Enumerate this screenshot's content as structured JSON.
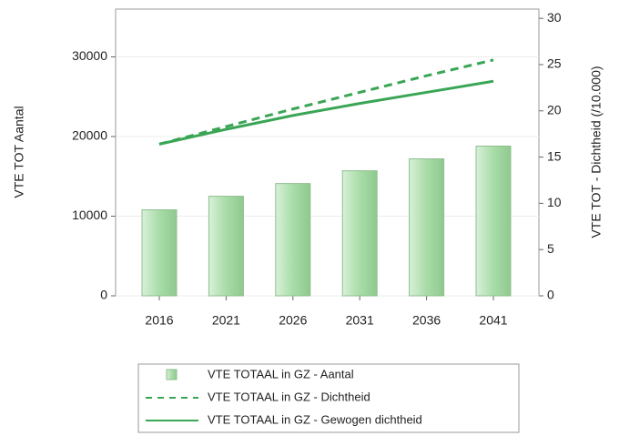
{
  "chart_data": {
    "type": "bar_line",
    "categories": [
      "2016",
      "2021",
      "2026",
      "2031",
      "2036",
      "2041"
    ],
    "ylabel": "VTE TOT Aantal",
    "y2label": "VTE TOT - Dichtheid (/10.000)",
    "ylim": [
      0,
      36000
    ],
    "yticks": [
      0,
      10000,
      20000,
      30000
    ],
    "y2lim": [
      0,
      31
    ],
    "y2ticks": [
      0,
      5,
      10,
      15,
      20,
      25,
      30
    ],
    "grid": true,
    "series": [
      {
        "name": "VTE TOTAAL in GZ - Aantal",
        "type": "bar",
        "color": "#a8dca8",
        "values": [
          10800,
          12500,
          14100,
          15700,
          17200,
          18800
        ]
      },
      {
        "name": "VTE TOTAAL in GZ - Dichtheid",
        "type": "line",
        "style": "dashed",
        "axis": "y2",
        "color": "#3aa655",
        "values": [
          16.4,
          18.3,
          20.2,
          22.0,
          23.8,
          25.5
        ]
      },
      {
        "name": "VTE TOTAAL in GZ - Gewogen dichtheid",
        "type": "line",
        "style": "solid",
        "axis": "y2",
        "color": "#3aa655",
        "values": [
          16.4,
          18.0,
          19.5,
          20.8,
          22.0,
          23.2
        ]
      }
    ]
  }
}
